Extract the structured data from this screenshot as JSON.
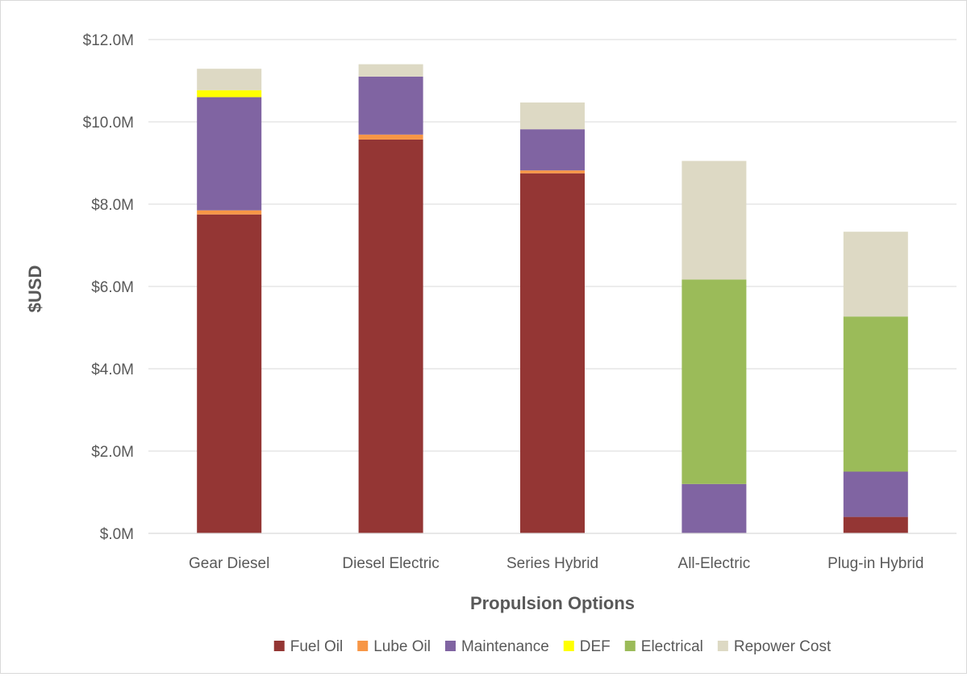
{
  "chart_data": {
    "type": "bar",
    "stacked": true,
    "title": "",
    "xlabel": "Propulsion Options",
    "ylabel": "$USD",
    "ylim": [
      0,
      12
    ],
    "y_unit": "millions USD",
    "yticks": [
      0,
      2,
      4,
      6,
      8,
      10,
      12
    ],
    "ytick_labels": [
      "$.0M",
      "$2.0M",
      "$4.0M",
      "$6.0M",
      "$8.0M",
      "$10.0M",
      "$12.0M"
    ],
    "grid": true,
    "legend_position": "bottom",
    "categories": [
      "Gear Diesel",
      "Diesel Electric",
      "Series Hybrid",
      "All-Electric",
      "Plug-in Hybrid"
    ],
    "series": [
      {
        "name": "Fuel Oil",
        "color": "#943634",
        "values": [
          7.75,
          9.57,
          8.75,
          0,
          0.4
        ]
      },
      {
        "name": "Lube Oil",
        "color": "#f79646",
        "values": [
          0.1,
          0.12,
          0.07,
          0,
          0
        ]
      },
      {
        "name": "Maintenance",
        "color": "#8064a2",
        "values": [
          2.75,
          1.41,
          1.0,
          1.2,
          1.1
        ]
      },
      {
        "name": "DEF",
        "color": "#ffff00",
        "values": [
          0.17,
          0,
          0,
          0,
          0
        ]
      },
      {
        "name": "Electrical",
        "color": "#9bbb59",
        "values": [
          0,
          0,
          0,
          4.97,
          3.77
        ]
      },
      {
        "name": "Repower Cost",
        "color": "#ddd9c4",
        "values": [
          0.52,
          0.3,
          0.65,
          2.88,
          2.06
        ]
      }
    ]
  }
}
